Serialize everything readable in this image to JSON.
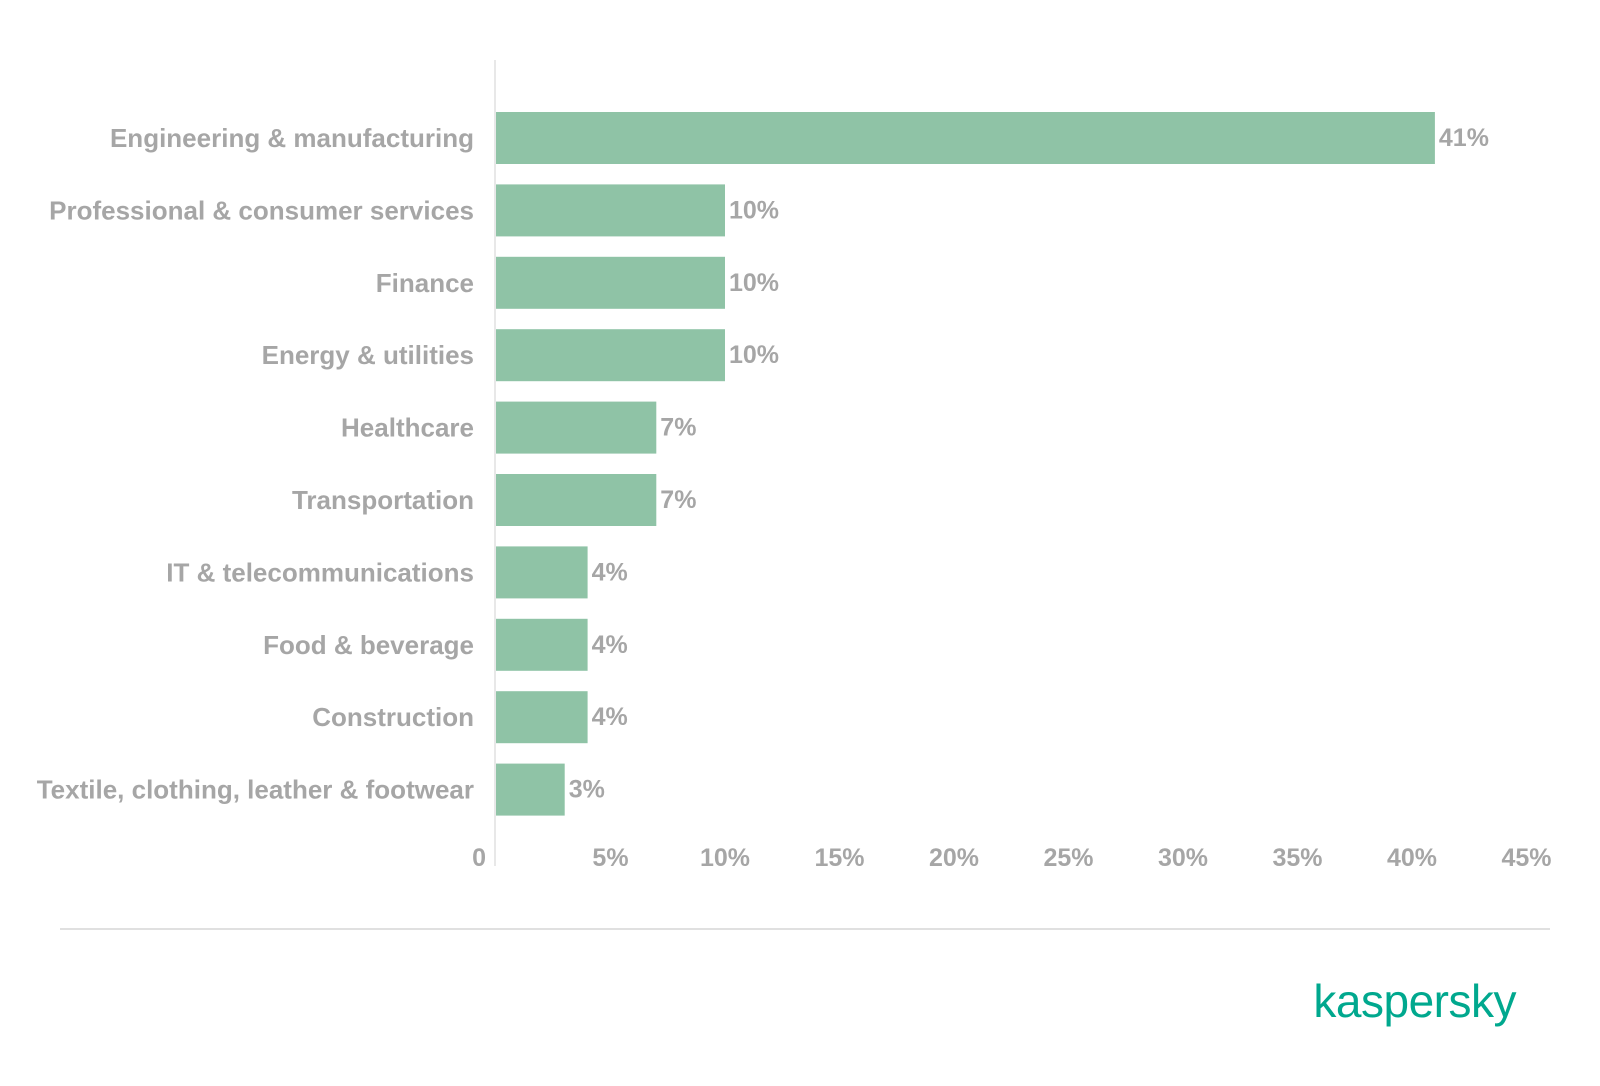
{
  "chart_data": {
    "type": "bar",
    "orientation": "horizontal",
    "categories": [
      "Engineering & manufacturing",
      "Professional & consumer services",
      "Finance",
      "Energy & utilities",
      "Healthcare",
      "Transportation",
      "IT & telecommunications",
      "Food & beverage",
      "Construction",
      "Textile, clothing, leather & footwear"
    ],
    "values": [
      41,
      10,
      10,
      10,
      7,
      7,
      4,
      4,
      4,
      3
    ],
    "data_labels": [
      "41%",
      "10%",
      "10%",
      "10%",
      "7%",
      "7%",
      "4%",
      "4%",
      "4%",
      "3%"
    ],
    "x_ticks": [
      0,
      5,
      10,
      15,
      20,
      25,
      30,
      35,
      40,
      45
    ],
    "x_tick_labels": [
      "0",
      "5%",
      "10%",
      "15%",
      "20%",
      "25%",
      "30%",
      "35%",
      "40%",
      "45%"
    ],
    "xlim": [
      0,
      45
    ],
    "grid": false,
    "legend": "none",
    "bar_color": "#8fc3a6",
    "label_color": "#a6a6a6",
    "axis_color": "#e8e8e8"
  },
  "branding": {
    "logo_text": "kaspersky",
    "logo_color": "#00a88e"
  }
}
